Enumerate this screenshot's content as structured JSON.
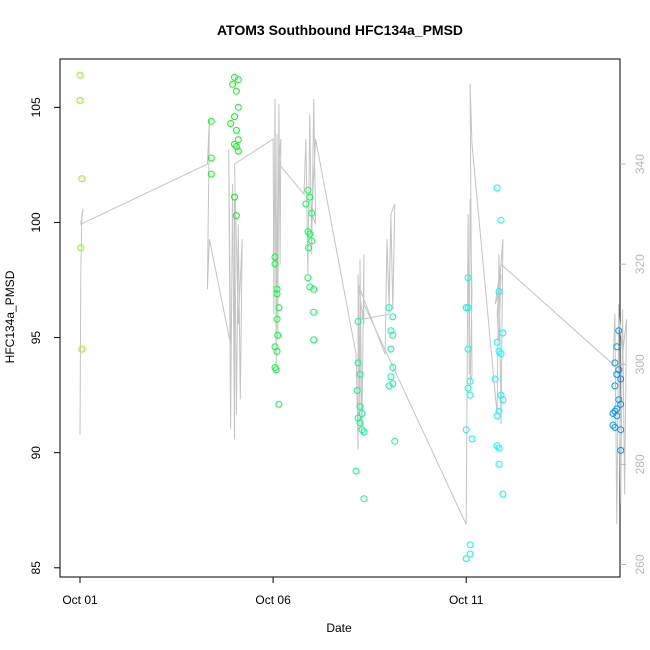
{
  "chart_data": {
    "type": "scatter",
    "title": "ATOM3 Southbound HFC134a_PMSD",
    "xlabel": "Date",
    "ylabel": "HFC134a_PMSD",
    "x_ticks": [
      "Oct 01",
      "Oct 06",
      "Oct 11"
    ],
    "x_tick_days": [
      1,
      6,
      11
    ],
    "xlim": [
      1,
      15.5
    ],
    "ylim": [
      84.6,
      107.1
    ],
    "y_ticks": [
      85,
      90,
      95,
      100,
      105
    ],
    "y2lim": [
      257.5,
      361
    ],
    "y2_ticks": [
      260,
      280,
      300,
      320,
      340
    ],
    "grid": false,
    "point_style": "open circle, color gradient green to blue over time",
    "points": [
      [
        1.0,
        106.4
      ],
      [
        1.0,
        105.3
      ],
      [
        1.05,
        101.9
      ],
      [
        1.02,
        98.9
      ],
      [
        1.05,
        94.5
      ],
      [
        4.4,
        104.4
      ],
      [
        4.4,
        102.8
      ],
      [
        4.4,
        102.1
      ],
      [
        5.0,
        106.3
      ],
      [
        5.1,
        106.2
      ],
      [
        4.95,
        106.0
      ],
      [
        5.05,
        105.7
      ],
      [
        5.1,
        105.0
      ],
      [
        5.0,
        104.6
      ],
      [
        4.9,
        104.3
      ],
      [
        5.05,
        104.0
      ],
      [
        5.1,
        103.6
      ],
      [
        5.0,
        103.4
      ],
      [
        5.05,
        103.3
      ],
      [
        5.1,
        103.1
      ],
      [
        5.0,
        101.1
      ],
      [
        5.05,
        100.3
      ],
      [
        6.05,
        98.5
      ],
      [
        6.05,
        98.2
      ],
      [
        6.1,
        97.1
      ],
      [
        6.1,
        96.9
      ],
      [
        6.15,
        96.3
      ],
      [
        6.1,
        95.8
      ],
      [
        6.12,
        95.1
      ],
      [
        6.05,
        94.6
      ],
      [
        6.1,
        94.4
      ],
      [
        6.05,
        93.7
      ],
      [
        6.08,
        93.6
      ],
      [
        6.15,
        92.1
      ],
      [
        6.9,
        101.4
      ],
      [
        6.95,
        101.1
      ],
      [
        6.85,
        100.8
      ],
      [
        7.0,
        100.4
      ],
      [
        6.9,
        99.6
      ],
      [
        6.95,
        99.5
      ],
      [
        7.0,
        99.2
      ],
      [
        6.92,
        98.9
      ],
      [
        6.9,
        97.6
      ],
      [
        6.95,
        97.2
      ],
      [
        7.05,
        97.1
      ],
      [
        7.05,
        96.1
      ],
      [
        7.05,
        94.9
      ],
      [
        8.2,
        95.7
      ],
      [
        8.2,
        93.9
      ],
      [
        8.25,
        93.4
      ],
      [
        8.18,
        92.7
      ],
      [
        8.25,
        92.0
      ],
      [
        8.3,
        91.7
      ],
      [
        8.2,
        91.5
      ],
      [
        8.25,
        91.3
      ],
      [
        8.3,
        91.0
      ],
      [
        8.35,
        90.9
      ],
      [
        8.15,
        89.2
      ],
      [
        8.35,
        88.0
      ],
      [
        9.0,
        96.3
      ],
      [
        9.1,
        95.9
      ],
      [
        9.05,
        95.3
      ],
      [
        9.1,
        95.1
      ],
      [
        9.05,
        94.5
      ],
      [
        9.1,
        93.7
      ],
      [
        9.05,
        93.3
      ],
      [
        9.1,
        93.0
      ],
      [
        9.0,
        92.9
      ],
      [
        9.15,
        90.5
      ],
      [
        11.05,
        97.6
      ],
      [
        11.05,
        96.3
      ],
      [
        11.0,
        96.3
      ],
      [
        11.05,
        94.5
      ],
      [
        11.1,
        93.1
      ],
      [
        11.05,
        92.8
      ],
      [
        11.1,
        92.5
      ],
      [
        11.0,
        91.0
      ],
      [
        11.15,
        90.6
      ],
      [
        11.1,
        86.0
      ],
      [
        11.1,
        85.6
      ],
      [
        11.0,
        85.4
      ],
      [
        11.8,
        101.5
      ],
      [
        11.9,
        100.1
      ],
      [
        11.85,
        97.0
      ],
      [
        11.95,
        95.2
      ],
      [
        11.8,
        94.8
      ],
      [
        11.85,
        94.4
      ],
      [
        11.9,
        94.3
      ],
      [
        11.75,
        93.2
      ],
      [
        11.9,
        92.5
      ],
      [
        11.95,
        92.3
      ],
      [
        11.8,
        91.6
      ],
      [
        11.85,
        91.8
      ],
      [
        11.8,
        90.3
      ],
      [
        11.85,
        90.2
      ],
      [
        11.85,
        89.5
      ],
      [
        11.95,
        88.2
      ],
      [
        14.95,
        95.3
      ],
      [
        14.9,
        94.6
      ],
      [
        14.85,
        93.9
      ],
      [
        14.95,
        93.6
      ],
      [
        14.9,
        93.4
      ],
      [
        15.0,
        93.2
      ],
      [
        14.85,
        92.9
      ],
      [
        14.95,
        92.3
      ],
      [
        15.0,
        92.1
      ],
      [
        14.9,
        91.9
      ],
      [
        14.85,
        91.8
      ],
      [
        14.8,
        91.7
      ],
      [
        14.9,
        91.6
      ],
      [
        14.8,
        91.2
      ],
      [
        14.85,
        91.1
      ],
      [
        15.0,
        91.0
      ],
      [
        15.0,
        90.1
      ]
    ],
    "secondary_line_y2": [
      [
        1.0,
        286
      ],
      [
        1.02,
        318
      ],
      [
        1.05,
        330
      ],
      [
        1.08,
        331
      ],
      [
        1.02,
        328
      ],
      [
        4.3,
        340
      ],
      [
        4.35,
        349
      ],
      [
        4.3,
        315
      ],
      [
        4.35,
        325
      ],
      [
        4.9,
        304
      ],
      [
        4.85,
        343
      ],
      [
        4.9,
        287
      ],
      [
        4.95,
        336
      ],
      [
        5.0,
        285
      ],
      [
        5.0,
        333
      ],
      [
        5.05,
        290
      ],
      [
        5.1,
        328
      ],
      [
        5.15,
        293
      ],
      [
        5.2,
        325
      ],
      [
        5.1,
        308
      ],
      [
        5.0,
        340
      ],
      [
        6.0,
        345
      ],
      [
        6.02,
        310
      ],
      [
        6.05,
        353
      ],
      [
        6.08,
        300
      ],
      [
        6.1,
        346
      ],
      [
        6.12,
        305
      ],
      [
        6.15,
        352
      ],
      [
        6.18,
        320
      ],
      [
        6.2,
        345
      ],
      [
        6.15,
        340
      ],
      [
        6.8,
        334
      ],
      [
        6.85,
        345
      ],
      [
        6.9,
        318
      ],
      [
        6.95,
        350
      ],
      [
        7.0,
        322
      ],
      [
        7.05,
        353
      ],
      [
        7.1,
        328
      ],
      [
        7.0,
        330
      ],
      [
        7.1,
        345
      ],
      [
        8.15,
        302
      ],
      [
        8.2,
        283
      ],
      [
        8.2,
        318
      ],
      [
        8.25,
        287
      ],
      [
        8.25,
        321
      ],
      [
        8.3,
        286
      ],
      [
        8.35,
        322
      ],
      [
        8.35,
        308
      ],
      [
        8.2,
        316
      ],
      [
        8.9,
        302
      ],
      [
        8.95,
        325
      ],
      [
        9.0,
        312
      ],
      [
        9.05,
        330
      ],
      [
        9.1,
        311
      ],
      [
        9.15,
        332
      ],
      [
        9.05,
        330
      ],
      [
        9.0,
        310
      ],
      [
        8.3,
        309
      ],
      [
        8.35,
        312
      ],
      [
        11.0,
        268
      ],
      [
        11.05,
        330
      ],
      [
        11.08,
        298
      ],
      [
        11.1,
        333
      ],
      [
        11.15,
        314
      ],
      [
        11.1,
        296
      ],
      [
        11.15,
        298
      ],
      [
        11.1,
        356
      ],
      [
        11.15,
        344
      ],
      [
        11.8,
        290
      ],
      [
        11.85,
        322
      ],
      [
        11.9,
        288
      ],
      [
        11.95,
        325
      ],
      [
        11.8,
        310
      ],
      [
        11.85,
        305
      ],
      [
        11.9,
        318
      ],
      [
        11.8,
        313
      ],
      [
        11.75,
        312
      ],
      [
        11.9,
        320
      ],
      [
        14.8,
        300
      ],
      [
        14.85,
        310
      ],
      [
        14.9,
        268
      ],
      [
        14.95,
        312
      ],
      [
        15.0,
        272
      ],
      [
        15.05,
        311
      ],
      [
        15.1,
        274
      ],
      [
        15.15,
        309
      ],
      [
        15.05,
        302
      ],
      [
        14.95,
        310
      ]
    ]
  }
}
